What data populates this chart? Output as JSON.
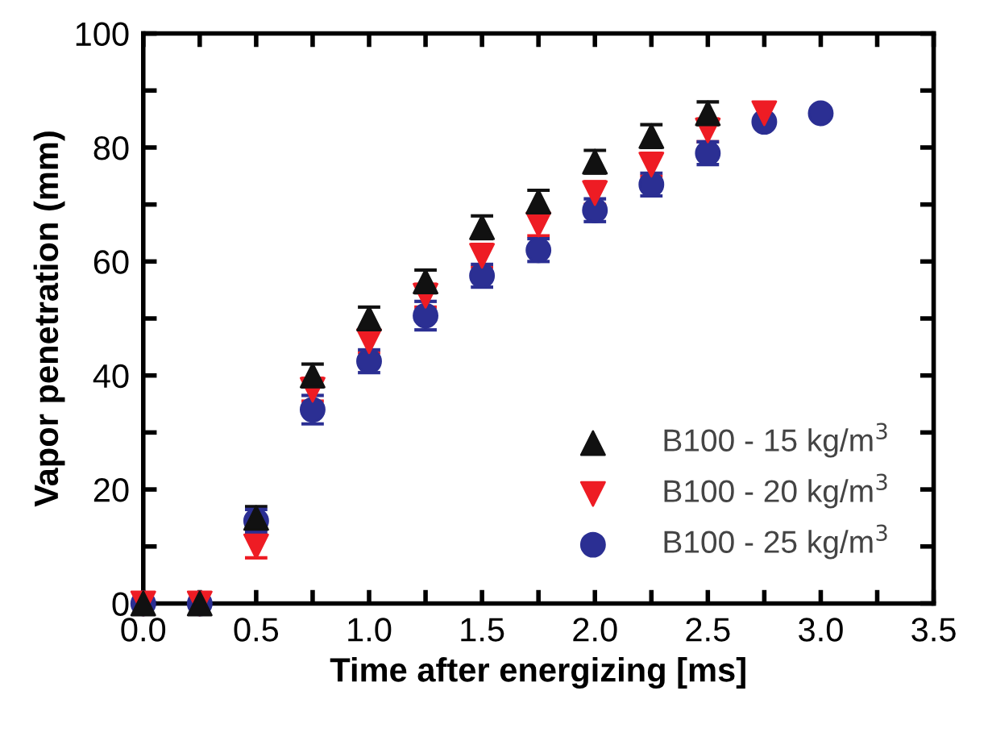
{
  "chart_data": {
    "type": "scatter",
    "xlabel": "Time after energizing [ms]",
    "ylabel": "Vapor penetration (mm)",
    "x": [
      0,
      0.25,
      0.5,
      0.75,
      1.0,
      1.25,
      1.5,
      1.75,
      2.0,
      2.25,
      2.5,
      2.75,
      3.0
    ],
    "series": [
      {
        "name": "B100 - 15 kg/m$^{3}$",
        "color": "#111111",
        "marker": "triangle",
        "values": [
          0,
          0,
          15,
          40,
          50,
          56.5,
          66,
          70.5,
          77.5,
          82,
          86,
          null,
          null
        ],
        "errors": [
          null,
          null,
          2,
          2,
          2,
          2,
          2,
          2,
          2,
          2,
          2,
          null,
          null
        ]
      },
      {
        "name": "B100 - 20 kg/m$^{3}$",
        "color": "#ee1c24",
        "marker": "triangle_down",
        "values": [
          0,
          0,
          10,
          37.5,
          46,
          54,
          61,
          66.5,
          72,
          77,
          83,
          86,
          null
        ],
        "errors": [
          null,
          null,
          2,
          2,
          2,
          2,
          2,
          2,
          2,
          2,
          2,
          null,
          null
        ]
      },
      {
        "name": "B100 - 25 kg/m$^{3}$",
        "color": "#2b2f93",
        "marker": "circle",
        "values": [
          0,
          0,
          14.5,
          34,
          42.5,
          50.5,
          57.5,
          62,
          69,
          73.5,
          79,
          84.5,
          86
        ],
        "errors": [
          null,
          null,
          2,
          2.5,
          2,
          2.5,
          2,
          2,
          2,
          2,
          2,
          null,
          null
        ]
      }
    ],
    "xlim": [
      0,
      3.5
    ],
    "ylim": [
      0,
      100
    ],
    "xticks": [
      {
        "value": 0,
        "label": "0.0"
      },
      {
        "value": 0.25,
        "label": null
      },
      {
        "value": 0.5,
        "label": "0.5"
      },
      {
        "value": 0.75,
        "label": null
      },
      {
        "value": 1,
        "label": "1.0"
      },
      {
        "value": 1.25,
        "label": null
      },
      {
        "value": 1.5,
        "label": "1.5"
      },
      {
        "value": 1.75,
        "label": null
      },
      {
        "value": 2,
        "label": "2.0"
      },
      {
        "value": 2.25,
        "label": null
      },
      {
        "value": 2.5,
        "label": "2.5"
      },
      {
        "value": 2.75,
        "label": null
      },
      {
        "value": 3,
        "label": "3.0"
      },
      {
        "value": 3.25,
        "label": null
      },
      {
        "value": 3.5,
        "label": "3.5"
      }
    ],
    "yticks": [
      0,
      {
        "value": 10,
        "label": null
      },
      20,
      {
        "value": 30,
        "label": null
      },
      40,
      {
        "value": 50,
        "label": null
      },
      60,
      {
        "value": 70,
        "label": null
      },
      80,
      {
        "value": 90,
        "label": null
      },
      100
    ],
    "grid": false,
    "legend": "bottom right"
  }
}
